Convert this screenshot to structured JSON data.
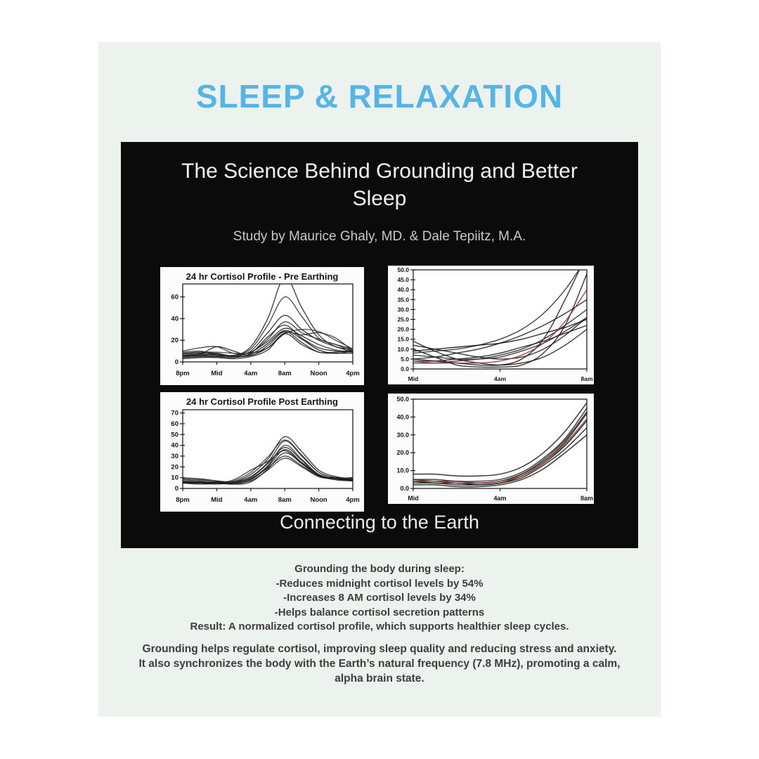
{
  "page": {
    "background_color": "#ffffff",
    "card_background": "#ecf2ee"
  },
  "header": {
    "title": "SLEEP & RELAXATION",
    "title_color": "#56b4e6"
  },
  "panel": {
    "background": "#0b0b0b",
    "title": "The Science Behind Grounding and Better Sleep",
    "study_credit": "Study by Maurice Ghaly, MD. & Dale Tepiitz, M.A.",
    "caption": "Connecting to the Earth",
    "highlight_line_color": "#9b3030"
  },
  "body_text": {
    "block1": {
      "lines": [
        "Grounding the body during sleep:",
        "-Reduces midnight cortisol levels by 54%",
        "-Increases 8 AM cortisol levels by 34%",
        "-Helps balance cortisol secretion patterns",
        "Result: A normalized cortisol profile, which supports healthier sleep cycles."
      ]
    },
    "block2": {
      "lines": [
        "Grounding helps regulate cortisol, improving sleep quality and reducing stress and anxiety.",
        "It also synchronizes the body with the Earth’s natural frequency (7.8 MHz), promoting a calm,",
        "alpha brain state."
      ]
    }
  },
  "chart_data": [
    {
      "id": "cortisol-24h-pre-earthing",
      "type": "line",
      "title": "24 hr Cortisol Profile - Pre Earthing",
      "xlabel": "",
      "ylabel": "",
      "x_max": 20,
      "x_step": 2,
      "ylim": [
        0,
        72
      ],
      "y_ticks": [
        0,
        20,
        40,
        60
      ],
      "y_tick_labels": [
        "0",
        "20",
        "40",
        "60"
      ],
      "x_ticks": [
        0,
        4,
        8,
        12,
        16,
        20
      ],
      "x_tick_labels": [
        "8pm",
        "Mid",
        "4am",
        "8am",
        "Noon",
        "4pm"
      ],
      "grid": false,
      "legend": "none",
      "series": [
        {
          "name": "subject-1",
          "color": "#1c1c1c",
          "values": [
            8,
            9,
            8,
            6,
            14,
            40,
            78,
            50,
            25,
            14,
            12
          ]
        },
        {
          "name": "subject-2",
          "color": "#2a2a2a",
          "values": [
            5,
            6,
            7,
            6,
            12,
            34,
            60,
            42,
            22,
            16,
            10
          ]
        },
        {
          "name": "subject-3",
          "color": "#1c1c1c",
          "values": [
            6,
            7,
            6,
            5,
            10,
            27,
            43,
            30,
            20,
            14,
            9
          ]
        },
        {
          "name": "subject-4",
          "color": "#2a2a2a",
          "values": [
            10,
            13,
            14,
            8,
            9,
            21,
            37,
            27,
            21,
            16,
            12
          ]
        },
        {
          "name": "subject-5",
          "color": "#1c1c1c",
          "values": [
            4,
            5,
            5,
            6,
            9,
            19,
            31,
            24,
            16,
            11,
            9
          ]
        },
        {
          "name": "subject-6",
          "color": "#333333",
          "values": [
            8,
            9,
            9,
            8,
            8,
            13,
            26,
            30,
            28,
            20,
            12
          ]
        },
        {
          "name": "subject-7",
          "color": "#1c1c1c",
          "values": [
            5,
            7,
            14,
            10,
            6,
            15,
            28,
            18,
            9,
            9,
            11
          ]
        },
        {
          "name": "subject-8",
          "color": "#101010",
          "values": [
            7,
            8,
            7,
            5,
            7,
            17,
            29,
            21,
            11,
            8,
            10
          ]
        },
        {
          "name": "subject-9",
          "color": "#1c1c1c",
          "values": [
            3,
            4,
            4,
            3,
            5,
            11,
            26,
            16,
            9,
            8,
            8
          ]
        },
        {
          "name": "subject-10",
          "color": "#2a2a2a",
          "values": [
            9,
            10,
            7,
            5,
            6,
            13,
            27,
            25,
            27,
            22,
            10
          ]
        },
        {
          "name": "subject-11",
          "color": "#1c1c1c",
          "values": [
            6,
            6,
            5,
            4,
            8,
            23,
            34,
            22,
            13,
            10,
            9
          ]
        }
      ]
    },
    {
      "id": "cortisol-midnight-to-8am-pre-earthing",
      "type": "line",
      "title": "",
      "xlabel": "",
      "ylabel": "",
      "x_max": 8,
      "x_step": 1,
      "ylim": [
        0,
        50
      ],
      "y_ticks": [
        0,
        5,
        10,
        15,
        20,
        25,
        30,
        35,
        40,
        45,
        50
      ],
      "y_tick_labels": [
        "0.0",
        "5.0",
        "10.0",
        "15.0",
        "20.0",
        "25.0",
        "30.0",
        "35.0",
        "40.0",
        "45.0",
        "50.0"
      ],
      "x_ticks": [
        0,
        4,
        8
      ],
      "x_tick_labels": [
        "Mid",
        "4am",
        "8am"
      ],
      "grid": false,
      "legend": "none",
      "series": [
        {
          "name": "subject-1",
          "color": "#1c1c1c",
          "values": [
            10,
            6,
            2,
            1,
            1,
            2,
            8,
            22,
            48
          ]
        },
        {
          "name": "subject-2",
          "color": "#1c1c1c",
          "values": [
            5,
            4,
            3,
            2,
            2,
            5,
            15,
            35,
            58
          ]
        },
        {
          "name": "subject-3",
          "color": "#2a2a2a",
          "values": [
            8,
            9,
            10,
            12,
            15,
            20,
            28,
            40,
            56
          ]
        },
        {
          "name": "subject-4",
          "color": "#1c1c1c",
          "values": [
            5,
            6,
            8,
            10,
            13,
            17,
            22,
            28,
            35
          ]
        },
        {
          "name": "subject-5",
          "color": "#2a2a2a",
          "values": [
            3,
            3,
            4,
            5,
            7,
            10,
            15,
            22,
            30
          ]
        },
        {
          "name": "subject-6",
          "color": "#1c1c1c",
          "values": [
            12,
            10,
            8,
            6,
            5,
            6,
            10,
            17,
            26
          ]
        },
        {
          "name": "subject-7",
          "color": "#101010",
          "values": [
            9,
            10,
            11,
            12,
            13,
            15,
            18,
            21,
            25
          ]
        },
        {
          "name": "subject-8",
          "color": "#1c1c1c",
          "values": [
            4,
            4,
            5,
            6,
            8,
            11,
            14,
            18,
            22
          ]
        },
        {
          "name": "subject-9",
          "color": "#2a2a2a",
          "values": [
            7,
            6,
            5,
            5,
            6,
            9,
            13,
            19,
            26
          ]
        },
        {
          "name": "subject-10",
          "color": "#1c1c1c",
          "values": [
            14,
            9,
            5,
            3,
            2,
            3,
            6,
            12,
            20
          ]
        },
        {
          "name": "red-highlight",
          "color": "#9b3030",
          "values": [
            4,
            3,
            3,
            3,
            4,
            7,
            13,
            24,
            40
          ]
        }
      ]
    },
    {
      "id": "cortisol-24h-post-earthing",
      "type": "line",
      "title": "24 hr Cortisol Profile Post Earthing",
      "xlabel": "",
      "ylabel": "",
      "x_max": 20,
      "x_step": 2,
      "ylim": [
        0,
        73
      ],
      "y_ticks": [
        0,
        10,
        20,
        30,
        40,
        50,
        60,
        70
      ],
      "y_tick_labels": [
        "0",
        "10",
        "20",
        "30",
        "40",
        "50",
        "60",
        "70"
      ],
      "x_ticks": [
        0,
        4,
        8,
        12,
        16,
        20
      ],
      "x_tick_labels": [
        "8pm",
        "Mid",
        "4am",
        "8am",
        "Noon",
        "4pm"
      ],
      "grid": false,
      "legend": "none",
      "series": [
        {
          "name": "subject-1",
          "color": "#1c1c1c",
          "values": [
            8,
            7,
            6,
            6,
            11,
            24,
            44,
            30,
            15,
            10,
            8
          ]
        },
        {
          "name": "subject-2",
          "color": "#2a2a2a",
          "values": [
            6,
            5,
            5,
            5,
            9,
            21,
            40,
            27,
            13,
            9,
            7
          ]
        },
        {
          "name": "subject-3",
          "color": "#1c1c1c",
          "values": [
            5,
            5,
            4,
            6,
            13,
            27,
            48,
            34,
            17,
            11,
            9
          ]
        },
        {
          "name": "subject-4",
          "color": "#333333",
          "values": [
            7,
            6,
            5,
            7,
            15,
            29,
            45,
            31,
            15,
            10,
            10
          ]
        },
        {
          "name": "subject-5",
          "color": "#1c1c1c",
          "values": [
            6,
            6,
            5,
            5,
            10,
            23,
            38,
            26,
            12,
            9,
            8
          ]
        },
        {
          "name": "subject-6",
          "color": "#2a2a2a",
          "values": [
            5,
            4,
            5,
            8,
            17,
            25,
            35,
            23,
            11,
            9,
            7
          ]
        },
        {
          "name": "subject-7",
          "color": "#1c1c1c",
          "values": [
            9,
            8,
            7,
            6,
            9,
            19,
            30,
            21,
            11,
            10,
            9
          ]
        },
        {
          "name": "subject-8",
          "color": "#101010",
          "values": [
            6,
            5,
            5,
            4,
            8,
            20,
            36,
            24,
            13,
            9,
            8
          ]
        },
        {
          "name": "subject-9",
          "color": "#2a2a2a",
          "values": [
            10,
            9,
            7,
            5,
            7,
            17,
            28,
            20,
            11,
            9,
            10
          ]
        },
        {
          "name": "subject-10",
          "color": "#1c1c1c",
          "values": [
            5,
            5,
            6,
            4,
            6,
            18,
            33,
            23,
            12,
            8,
            7
          ]
        }
      ]
    },
    {
      "id": "cortisol-midnight-to-8am-post-earthing",
      "type": "line",
      "title": "",
      "xlabel": "",
      "ylabel": "",
      "x_max": 8,
      "x_step": 1,
      "ylim": [
        0,
        50
      ],
      "y_ticks": [
        0,
        10,
        20,
        30,
        40,
        50
      ],
      "y_tick_labels": [
        "0.0",
        "10.0",
        "20.0",
        "30.0",
        "40.0",
        "50.0"
      ],
      "x_ticks": [
        0,
        4,
        8
      ],
      "x_tick_labels": [
        "Mid",
        "4am",
        "8am"
      ],
      "grid": false,
      "legend": "none",
      "series": [
        {
          "name": "subject-1",
          "color": "#1c1c1c",
          "values": [
            8,
            8,
            7,
            7,
            8,
            12,
            20,
            32,
            48
          ]
        },
        {
          "name": "subject-2",
          "color": "#2a2a2a",
          "values": [
            5,
            5,
            4,
            4,
            5,
            9,
            17,
            28,
            45
          ]
        },
        {
          "name": "subject-3",
          "color": "#1c1c1c",
          "values": [
            4,
            4,
            3,
            3,
            4,
            8,
            15,
            26,
            42
          ]
        },
        {
          "name": "subject-4",
          "color": "#101010",
          "values": [
            4,
            3,
            3,
            2,
            3,
            7,
            14,
            24,
            38
          ]
        },
        {
          "name": "subject-5",
          "color": "#1c1c1c",
          "values": [
            3,
            3,
            2,
            2,
            3,
            6,
            13,
            22,
            34
          ]
        },
        {
          "name": "subject-6",
          "color": "#2a2a2a",
          "values": [
            5,
            4,
            4,
            3,
            4,
            8,
            16,
            27,
            43
          ]
        },
        {
          "name": "subject-7",
          "color": "#1c1c1c",
          "values": [
            2,
            2,
            1,
            1,
            2,
            5,
            11,
            20,
            30
          ]
        },
        {
          "name": "red-highlight",
          "color": "#9b3030",
          "values": [
            4,
            4,
            3,
            3,
            4,
            7,
            14,
            25,
            39
          ]
        }
      ]
    }
  ]
}
